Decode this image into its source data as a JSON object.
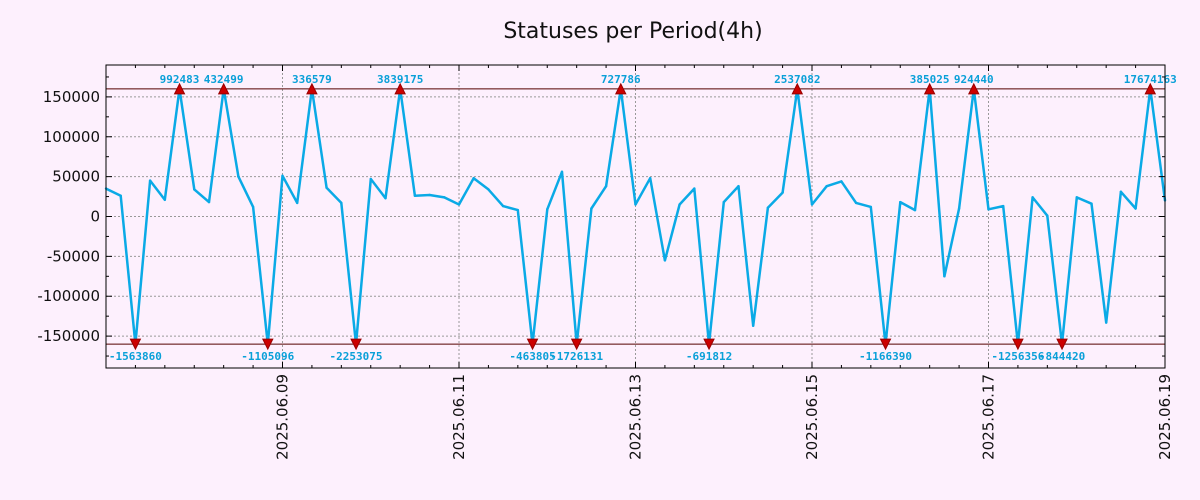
{
  "chart_data": {
    "type": "line",
    "title": "Statuses per Period(4h)",
    "xlabel": "",
    "ylabel": "",
    "ylim": [
      -190000,
      190000
    ],
    "yticks": [
      150000,
      100000,
      50000,
      0,
      -50000,
      -100000,
      -150000
    ],
    "ytick_labels": [
      "150000",
      "100000",
      "50000",
      "0",
      "-50000",
      "-100000",
      "-150000"
    ],
    "xticks": [
      {
        "index": 12,
        "label": "2025.06.09"
      },
      {
        "index": 24,
        "label": "2025.06.11"
      },
      {
        "index": 36,
        "label": "2025.06.13"
      },
      {
        "index": 48,
        "label": "2025.06.15"
      },
      {
        "index": 60,
        "label": "2025.06.17"
      },
      {
        "index": 72,
        "label": "2025.06.19"
      }
    ],
    "clip_upper": 160000,
    "clip_lower": -160000,
    "grid": true,
    "line_color": "#0aaae6",
    "marker_color": "#cc0000",
    "ref_line_color": "#550000",
    "annotation_color": "#0aa0d8",
    "series": [
      {
        "values": [
          35000,
          26000,
          -160000,
          45000,
          21000,
          160000,
          34000,
          18000,
          160000,
          50000,
          12000,
          -160000,
          51000,
          17000,
          160000,
          36000,
          17000,
          -160000,
          47000,
          23000,
          160000,
          26000,
          27000,
          24000,
          15000,
          48000,
          34000,
          13000,
          8000,
          -160000,
          9000,
          56000,
          -160000,
          10000,
          38000,
          160000,
          15000,
          48000,
          -55000,
          15000,
          35000,
          -160000,
          18000,
          38000,
          -137000,
          11000,
          30000,
          160000,
          15000,
          38000,
          44000,
          17000,
          12000,
          -160000,
          18000,
          8000,
          160000,
          -75000,
          10000,
          160000,
          9000,
          13000,
          -160000,
          24000,
          1000,
          -160000,
          24000,
          16000,
          -133000,
          31000,
          10000,
          160000,
          20000
        ]
      }
    ],
    "annotations": [
      {
        "index": 2,
        "label": "-1563860"
      },
      {
        "index": 5,
        "label": "992483"
      },
      {
        "index": 8,
        "label": "432499"
      },
      {
        "index": 11,
        "label": "-1105096"
      },
      {
        "index": 14,
        "label": "336579"
      },
      {
        "index": 17,
        "label": "-2253075"
      },
      {
        "index": 20,
        "label": "3839175"
      },
      {
        "index": 29,
        "label": "-463805"
      },
      {
        "index": 32,
        "label": "-1726131"
      },
      {
        "index": 35,
        "label": "727786"
      },
      {
        "index": 41,
        "label": "-691812"
      },
      {
        "index": 47,
        "label": "2537082"
      },
      {
        "index": 53,
        "label": "-1166390"
      },
      {
        "index": 56,
        "label": "385025"
      },
      {
        "index": 59,
        "label": "924440"
      },
      {
        "index": 62,
        "label": "-1256356"
      },
      {
        "index": 65,
        "label": "-844420"
      },
      {
        "index": 71,
        "label": "17674163"
      }
    ]
  }
}
